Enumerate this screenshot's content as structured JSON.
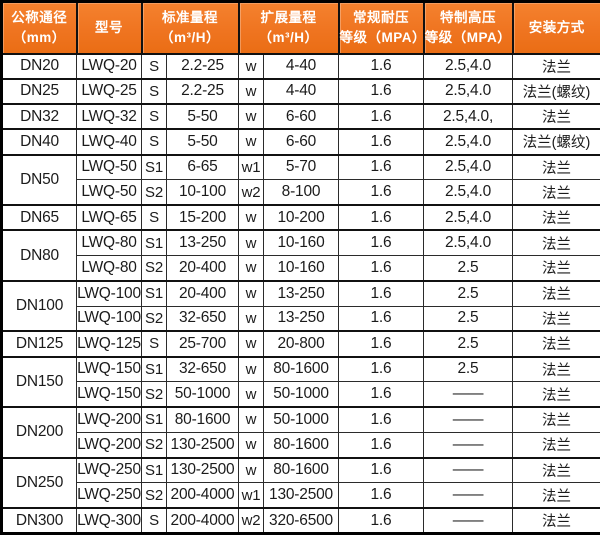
{
  "colors": {
    "header_bg": "#ef7420",
    "header_text": "#ffffff",
    "border": "#111111",
    "cell_text": "#1b1b1b"
  },
  "table": {
    "headers": [
      {
        "line1": "公称通径",
        "line2": "（mm）"
      },
      {
        "line1": "型号",
        "line2": ""
      },
      {
        "line1": "标准量程",
        "line2": "（m³/H）"
      },
      {
        "line1": "扩展量程",
        "line2": "（m³/H）"
      },
      {
        "line1": "常规耐压",
        "line2": "等级（MPA）"
      },
      {
        "line1": "特制高压",
        "line2": "等级（MPA）"
      },
      {
        "line1": "安装方式",
        "line2": ""
      }
    ],
    "groups": [
      {
        "dn": "DN20",
        "rows": [
          {
            "model": "LWQ-20",
            "std_code": "S",
            "std_range": "2.2-25",
            "ext_code": "w",
            "ext_range": "4-40",
            "pressure": "1.6",
            "special": "2.5,4.0",
            "install": "法兰"
          }
        ]
      },
      {
        "dn": "DN25",
        "rows": [
          {
            "model": "LWQ-25",
            "std_code": "S",
            "std_range": "2.2-25",
            "ext_code": "w",
            "ext_range": "4-40",
            "pressure": "1.6",
            "special": "2.5,4.0",
            "install": "法兰(螺纹)"
          }
        ]
      },
      {
        "dn": "DN32",
        "rows": [
          {
            "model": "LWQ-32",
            "std_code": "S",
            "std_range": "5-50",
            "ext_code": "w",
            "ext_range": "6-60",
            "pressure": "1.6",
            "special": "2.5,4.0,",
            "install": "法兰"
          }
        ]
      },
      {
        "dn": "DN40",
        "rows": [
          {
            "model": "LWQ-40",
            "std_code": "S",
            "std_range": "5-50",
            "ext_code": "w",
            "ext_range": "6-60",
            "pressure": "1.6",
            "special": "2.5,4.0",
            "install": "法兰(螺纹)"
          }
        ]
      },
      {
        "dn": "DN50",
        "rows": [
          {
            "model": "LWQ-50",
            "std_code": "S1",
            "std_range": "6-65",
            "ext_code": "w1",
            "ext_range": "5-70",
            "pressure": "1.6",
            "special": "2.5,4.0",
            "install": "法兰"
          },
          {
            "model": "LWQ-50",
            "std_code": "S2",
            "std_range": "10-100",
            "ext_code": "w2",
            "ext_range": "8-100",
            "pressure": "1.6",
            "special": "2.5,4.0",
            "install": "法兰"
          }
        ]
      },
      {
        "dn": "DN65",
        "rows": [
          {
            "model": "LWQ-65",
            "std_code": "S",
            "std_range": "15-200",
            "ext_code": "w",
            "ext_range": "10-200",
            "pressure": "1.6",
            "special": "2.5,4.0",
            "install": "法兰"
          }
        ]
      },
      {
        "dn": "DN80",
        "rows": [
          {
            "model": "LWQ-80",
            "std_code": "S1",
            "std_range": "13-250",
            "ext_code": "w",
            "ext_range": "10-160",
            "pressure": "1.6",
            "special": "2.5,4.0",
            "install": "法兰"
          },
          {
            "model": "LWQ-80",
            "std_code": "S2",
            "std_range": "20-400",
            "ext_code": "w",
            "ext_range": "10-160",
            "pressure": "1.6",
            "special": "2.5",
            "install": "法兰"
          }
        ]
      },
      {
        "dn": "DN100",
        "rows": [
          {
            "model": "LWQ-100",
            "std_code": "S1",
            "std_range": "20-400",
            "ext_code": "w",
            "ext_range": "13-250",
            "pressure": "1.6",
            "special": "2.5",
            "install": "法兰"
          },
          {
            "model": "LWQ-100",
            "std_code": "S2",
            "std_range": "32-650",
            "ext_code": "w",
            "ext_range": "13-250",
            "pressure": "1.6",
            "special": "2.5",
            "install": "法兰"
          }
        ]
      },
      {
        "dn": "DN125",
        "rows": [
          {
            "model": "LWQ-125",
            "std_code": "S",
            "std_range": "25-700",
            "ext_code": "w",
            "ext_range": "20-800",
            "pressure": "1.6",
            "special": "2.5",
            "install": "法兰"
          }
        ]
      },
      {
        "dn": "DN150",
        "rows": [
          {
            "model": "LWQ-150",
            "std_code": "S1",
            "std_range": "32-650",
            "ext_code": "w",
            "ext_range": "80-1600",
            "pressure": "1.6",
            "special": "2.5",
            "install": "法兰"
          },
          {
            "model": "LWQ-150",
            "std_code": "S2",
            "std_range": "50-1000",
            "ext_code": "w",
            "ext_range": "50-1000",
            "pressure": "1.6",
            "special": "——",
            "install": "法兰"
          }
        ]
      },
      {
        "dn": "DN200",
        "rows": [
          {
            "model": "LWQ-200",
            "std_code": "S1",
            "std_range": "80-1600",
            "ext_code": "w",
            "ext_range": "50-1000",
            "pressure": "1.6",
            "special": "——",
            "install": "法兰"
          },
          {
            "model": "LWQ-200",
            "std_code": "S2",
            "std_range": "130-2500",
            "ext_code": "w",
            "ext_range": "80-1600",
            "pressure": "1.6",
            "special": "——",
            "install": "法兰"
          }
        ]
      },
      {
        "dn": "DN250",
        "rows": [
          {
            "model": "LWQ-250",
            "std_code": "S1",
            "std_range": "130-2500",
            "ext_code": "w",
            "ext_range": "80-1600",
            "pressure": "1.6",
            "special": "——",
            "install": "法兰"
          },
          {
            "model": "LWQ-250",
            "std_code": "S2",
            "std_range": "200-4000",
            "ext_code": "w1",
            "ext_range": "130-2500",
            "pressure": "1.6",
            "special": "——",
            "install": "法兰"
          }
        ]
      },
      {
        "dn": "DN300",
        "rows": [
          {
            "model": "LWQ-300",
            "std_code": "S",
            "std_range": "200-4000",
            "ext_code": "w2",
            "ext_range": "320-6500",
            "pressure": "1.6",
            "special": "——",
            "install": "法兰"
          }
        ]
      }
    ]
  }
}
